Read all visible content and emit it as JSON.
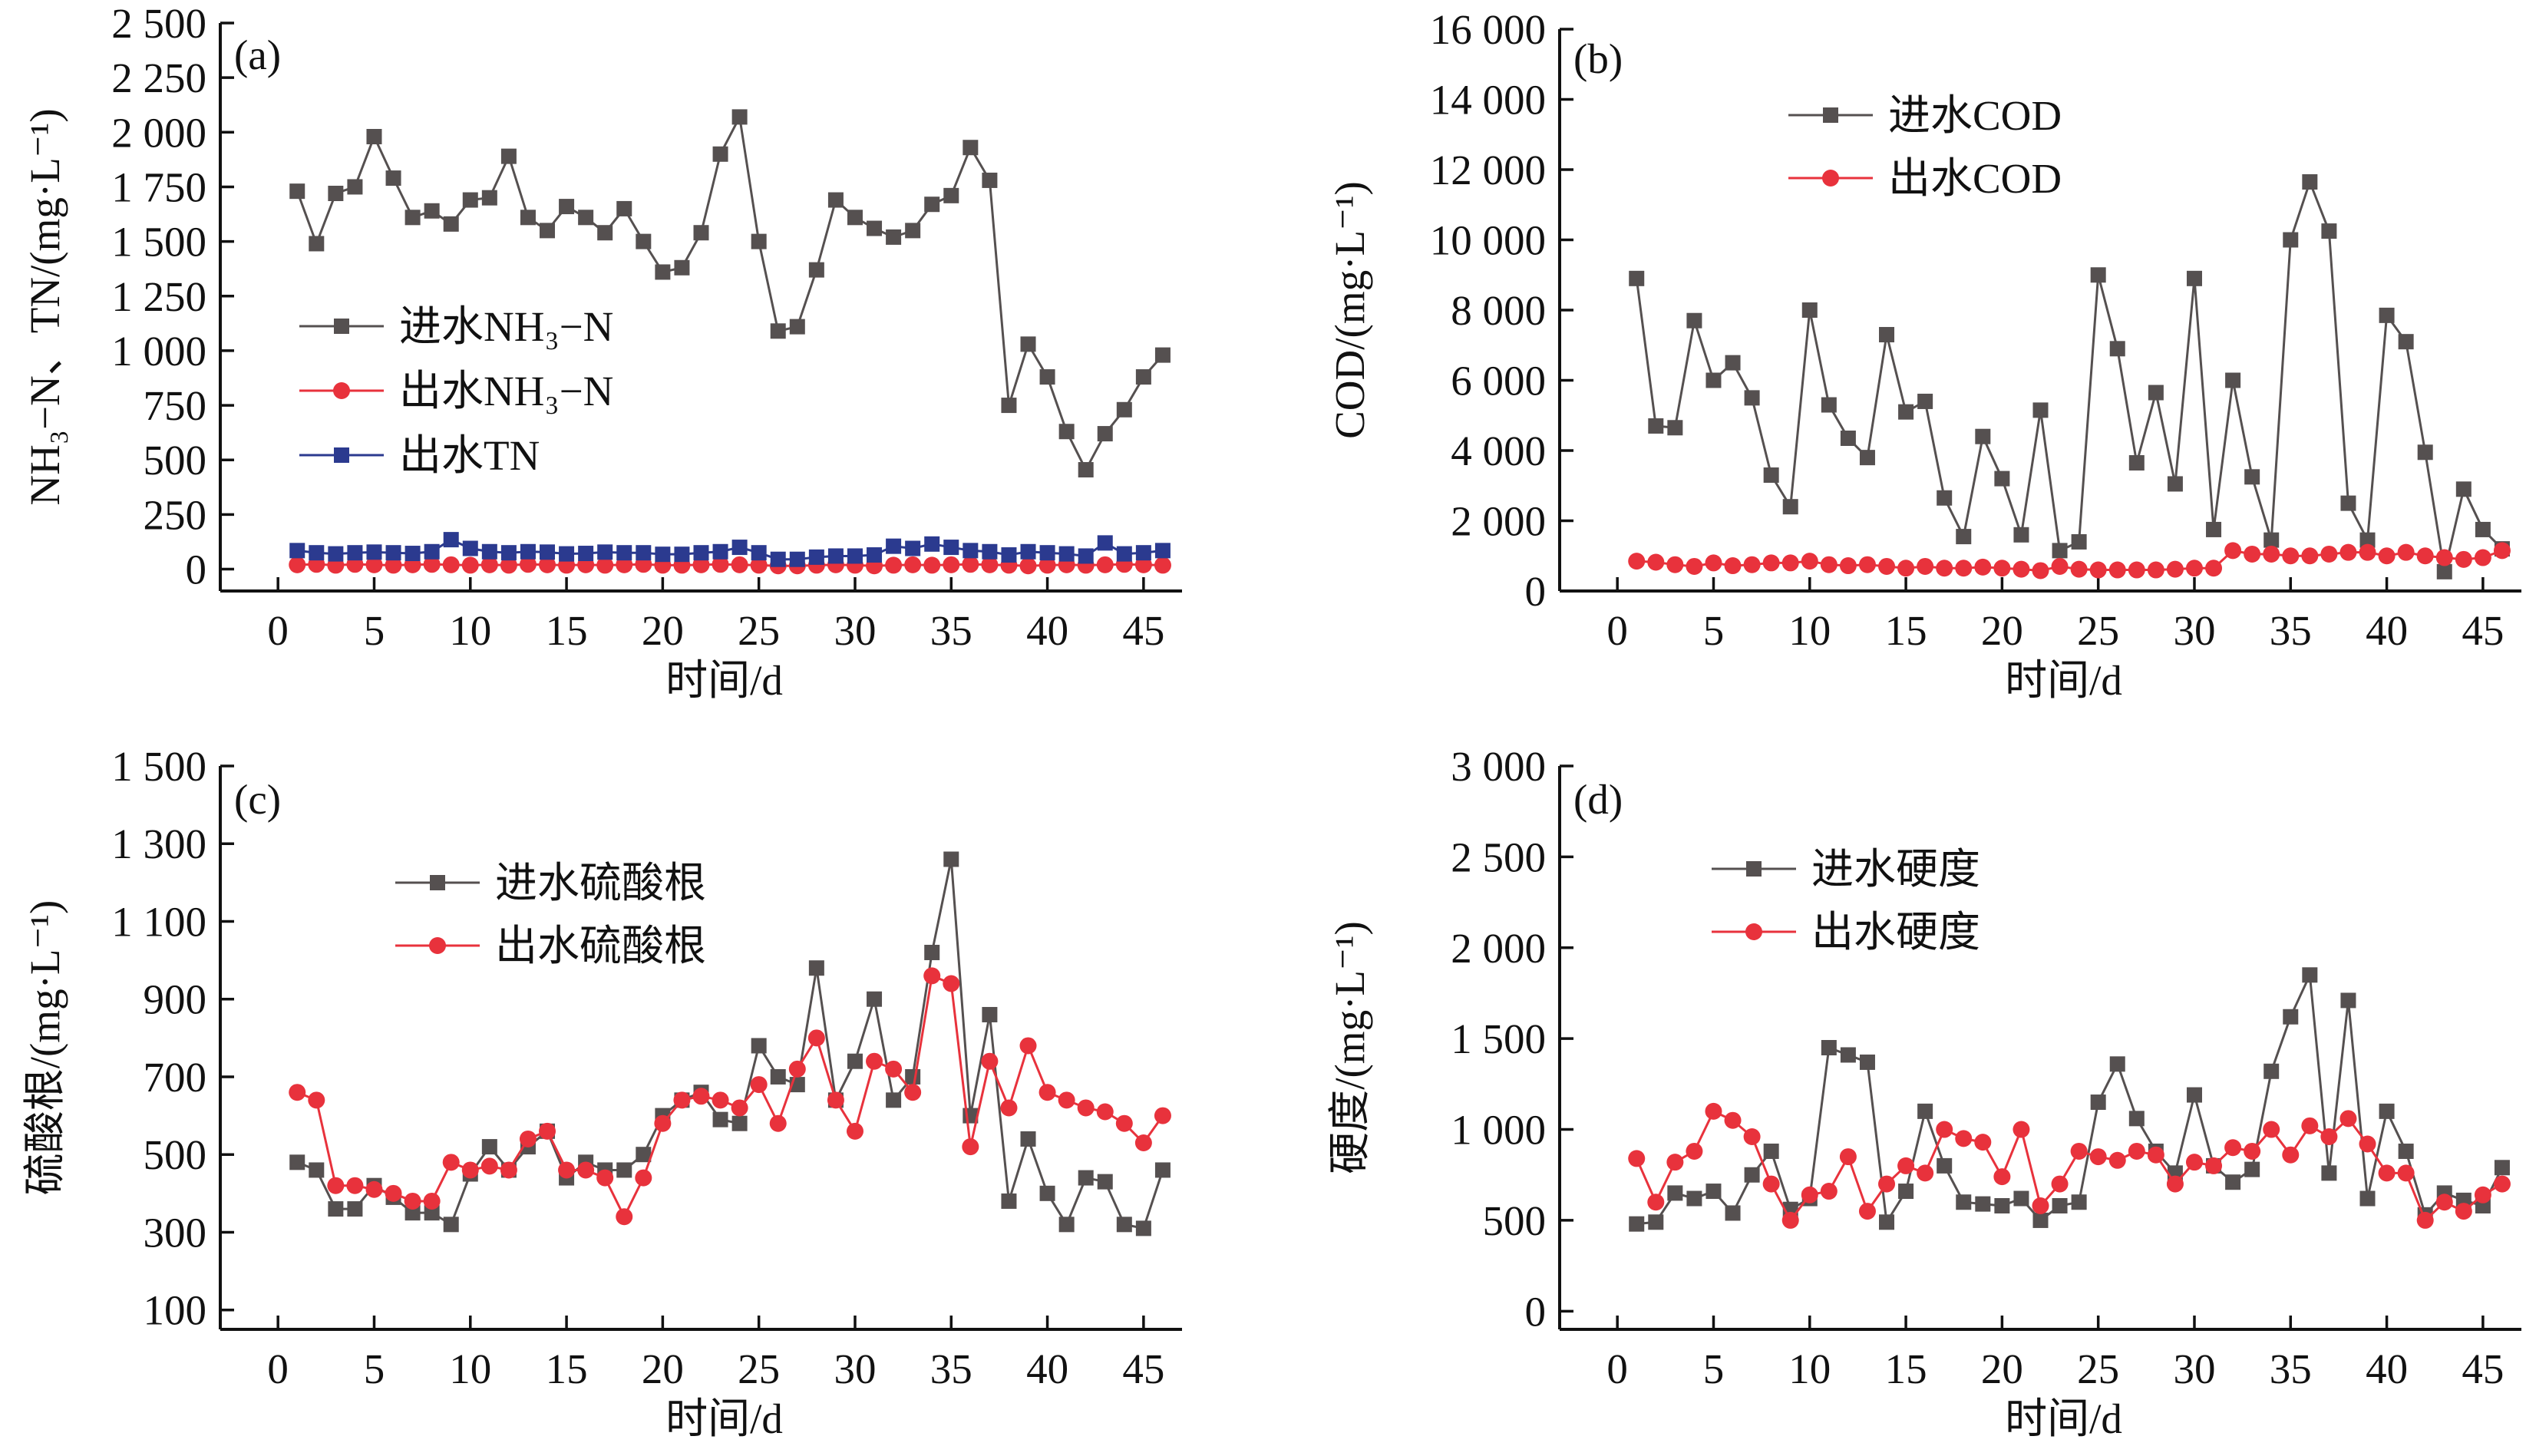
{
  "chart_data": [
    {
      "type": "line",
      "panel_label": "(a)",
      "xlabel": "时间/d",
      "ylabel": "NH₃−N、TN/(mg·L⁻¹)",
      "xlim": [
        -3,
        47
      ],
      "ylim": [
        -100,
        2500
      ],
      "xticks": [
        0,
        5,
        10,
        15,
        20,
        25,
        30,
        35,
        40,
        45
      ],
      "yticks": [
        0,
        250,
        500,
        750,
        1000,
        1250,
        1500,
        1750,
        2000,
        2250,
        2500
      ],
      "ytick_labels": [
        "0",
        "250",
        "500",
        "750",
        "1 000",
        "1 250",
        "1 500",
        "1 750",
        "2 000",
        "2 250",
        "2 500"
      ],
      "legend_position": "center-left",
      "series": [
        {
          "name": "进水NH₃−N",
          "marker": "square",
          "color": "#555050",
          "x": [
            1,
            2,
            3,
            4,
            5,
            6,
            7,
            8,
            9,
            10,
            11,
            12,
            13,
            14,
            15,
            16,
            17,
            18,
            19,
            20,
            21,
            22,
            23,
            24,
            25,
            26,
            27,
            28,
            29,
            30,
            31,
            32,
            33,
            34,
            35,
            36,
            37,
            38,
            39,
            40,
            41,
            42,
            43,
            44,
            45,
            46
          ],
          "values": [
            1730,
            1490,
            1720,
            1750,
            1980,
            1790,
            1610,
            1640,
            1580,
            1690,
            1700,
            1890,
            1610,
            1550,
            1660,
            1610,
            1540,
            1650,
            1500,
            1360,
            1380,
            1540,
            1900,
            2070,
            1500,
            1090,
            1110,
            1370,
            1690,
            1610,
            1560,
            1520,
            1550,
            1670,
            1710,
            1930,
            1780,
            750,
            1030,
            880,
            630,
            455,
            620,
            730,
            880,
            980
          ]
        },
        {
          "name": "出水NH₃−N",
          "marker": "circle",
          "color": "#e8323c",
          "x": [
            1,
            2,
            3,
            4,
            5,
            6,
            7,
            8,
            9,
            10,
            11,
            12,
            13,
            14,
            15,
            16,
            17,
            18,
            19,
            20,
            21,
            22,
            23,
            24,
            25,
            26,
            27,
            28,
            29,
            30,
            31,
            32,
            33,
            34,
            35,
            36,
            37,
            38,
            39,
            40,
            41,
            42,
            43,
            44,
            45,
            46
          ],
          "values": [
            20,
            22,
            18,
            22,
            20,
            18,
            20,
            22,
            20,
            18,
            20,
            18,
            22,
            20,
            18,
            20,
            18,
            20,
            22,
            18,
            18,
            20,
            22,
            20,
            18,
            15,
            15,
            18,
            20,
            18,
            15,
            18,
            20,
            18,
            20,
            22,
            20,
            18,
            15,
            18,
            20,
            18,
            20,
            22,
            20,
            18
          ]
        },
        {
          "name": "出水TN",
          "marker": "square",
          "color": "#2b3a8f",
          "x": [
            1,
            2,
            3,
            4,
            5,
            6,
            7,
            8,
            9,
            10,
            11,
            12,
            13,
            14,
            15,
            16,
            17,
            18,
            19,
            20,
            21,
            22,
            23,
            24,
            25,
            26,
            27,
            28,
            29,
            30,
            31,
            32,
            33,
            34,
            35,
            36,
            37,
            38,
            39,
            40,
            41,
            42,
            43,
            44,
            45,
            46
          ],
          "values": [
            85,
            75,
            70,
            75,
            78,
            75,
            72,
            80,
            135,
            95,
            80,
            75,
            80,
            78,
            70,
            72,
            78,
            75,
            75,
            68,
            68,
            75,
            80,
            100,
            75,
            45,
            45,
            55,
            60,
            60,
            65,
            105,
            95,
            115,
            100,
            85,
            80,
            65,
            80,
            75,
            70,
            60,
            120,
            70,
            75,
            85
          ]
        }
      ]
    },
    {
      "type": "line",
      "panel_label": "(b)",
      "xlabel": "时间/d",
      "ylabel": "COD/(mg·L⁻¹)",
      "xlim": [
        -3,
        47
      ],
      "ylim": [
        0,
        16000
      ],
      "xticks": [
        0,
        5,
        10,
        15,
        20,
        25,
        30,
        35,
        40,
        45
      ],
      "yticks": [
        0,
        2000,
        4000,
        6000,
        8000,
        10000,
        12000,
        14000,
        16000
      ],
      "ytick_labels": [
        "0",
        "2 000",
        "4 000",
        "6 000",
        "8 000",
        "10 000",
        "12 000",
        "14 000",
        "16 000"
      ],
      "legend_position": "top-center",
      "series": [
        {
          "name": "进水COD",
          "marker": "square",
          "color": "#555050",
          "x": [
            1,
            2,
            3,
            4,
            5,
            6,
            7,
            8,
            9,
            10,
            11,
            12,
            13,
            14,
            15,
            16,
            17,
            18,
            19,
            20,
            21,
            22,
            23,
            24,
            25,
            26,
            27,
            28,
            29,
            30,
            31,
            32,
            33,
            34,
            35,
            36,
            37,
            38,
            39,
            40,
            41,
            42,
            43,
            44,
            45,
            46
          ],
          "values": [
            8900,
            4700,
            4650,
            7700,
            6000,
            6500,
            5500,
            3300,
            2400,
            8000,
            5300,
            4350,
            3800,
            7300,
            5100,
            5400,
            2650,
            1550,
            4400,
            3200,
            1600,
            5150,
            1150,
            1400,
            9000,
            6900,
            3650,
            5650,
            3050,
            8900,
            1750,
            6000,
            3250,
            1450,
            10000,
            11650,
            10250,
            2500,
            1450,
            7850,
            7100,
            3950,
            550,
            2900,
            1750,
            1200
          ]
        },
        {
          "name": "出水COD",
          "marker": "circle",
          "color": "#e8323c",
          "x": [
            1,
            2,
            3,
            4,
            5,
            6,
            7,
            8,
            9,
            10,
            11,
            12,
            13,
            14,
            15,
            16,
            17,
            18,
            19,
            20,
            21,
            22,
            23,
            24,
            25,
            26,
            27,
            28,
            29,
            30,
            31,
            32,
            33,
            34,
            35,
            36,
            37,
            38,
            39,
            40,
            41,
            42,
            43,
            44,
            45,
            46
          ],
          "values": [
            850,
            820,
            750,
            700,
            800,
            720,
            750,
            800,
            800,
            850,
            750,
            720,
            750,
            700,
            650,
            700,
            650,
            650,
            680,
            650,
            620,
            580,
            700,
            620,
            600,
            600,
            600,
            600,
            620,
            650,
            650,
            1150,
            1050,
            1050,
            1000,
            1000,
            1050,
            1100,
            1100,
            1000,
            1100,
            1000,
            950,
            900,
            950,
            1150
          ]
        }
      ]
    },
    {
      "type": "line",
      "panel_label": "(c)",
      "xlabel": "时间/d",
      "ylabel": "硫酸根/(mg·L⁻¹)",
      "xlim": [
        -3,
        47
      ],
      "ylim": [
        50,
        1500
      ],
      "xticks": [
        0,
        5,
        10,
        15,
        20,
        25,
        30,
        35,
        40,
        45
      ],
      "yticks": [
        100,
        300,
        500,
        700,
        900,
        1100,
        1300,
        1500
      ],
      "ytick_labels": [
        "100",
        "300",
        "500",
        "700",
        "900",
        "1 100",
        "1 300",
        "1 500"
      ],
      "legend_position": "top-left",
      "series": [
        {
          "name": "进水硫酸根",
          "marker": "square",
          "color": "#555050",
          "x": [
            1,
            2,
            3,
            4,
            5,
            6,
            7,
            8,
            9,
            10,
            11,
            12,
            13,
            14,
            15,
            16,
            17,
            18,
            19,
            20,
            21,
            22,
            23,
            24,
            25,
            26,
            27,
            28,
            29,
            30,
            31,
            32,
            33,
            34,
            35,
            36,
            37,
            38,
            39,
            40,
            41,
            42,
            43,
            44,
            45,
            46
          ],
          "values": [
            480,
            460,
            360,
            360,
            420,
            390,
            350,
            350,
            320,
            450,
            520,
            460,
            520,
            560,
            440,
            480,
            460,
            460,
            500,
            600,
            640,
            660,
            590,
            580,
            780,
            700,
            680,
            980,
            640,
            740,
            900,
            640,
            700,
            1020,
            1260,
            600,
            860,
            380,
            540,
            400,
            320,
            440,
            430,
            320,
            310,
            460
          ]
        },
        {
          "name": "出水硫酸根",
          "marker": "circle",
          "color": "#e8323c",
          "x": [
            1,
            2,
            3,
            4,
            5,
            6,
            7,
            8,
            9,
            10,
            11,
            12,
            13,
            14,
            15,
            16,
            17,
            18,
            19,
            20,
            21,
            22,
            23,
            24,
            25,
            26,
            27,
            28,
            29,
            30,
            31,
            32,
            33,
            34,
            35,
            36,
            37,
            38,
            39,
            40,
            41,
            42,
            43,
            44,
            45,
            46
          ],
          "values": [
            660,
            640,
            420,
            420,
            410,
            400,
            380,
            380,
            480,
            460,
            470,
            460,
            540,
            560,
            460,
            460,
            440,
            340,
            440,
            580,
            640,
            650,
            640,
            620,
            680,
            580,
            720,
            800,
            640,
            560,
            740,
            720,
            660,
            960,
            940,
            520,
            740,
            620,
            780,
            660,
            640,
            620,
            610,
            580,
            530,
            600
          ]
        }
      ]
    },
    {
      "type": "line",
      "panel_label": "(d)",
      "xlabel": "时间/d",
      "ylabel": "硬度/(mg·L⁻¹)",
      "xlim": [
        -3,
        47
      ],
      "ylim": [
        -100,
        3000
      ],
      "xticks": [
        0,
        5,
        10,
        15,
        20,
        25,
        30,
        35,
        40,
        45
      ],
      "yticks": [
        0,
        500,
        1000,
        1500,
        2000,
        2500,
        3000
      ],
      "ytick_labels": [
        "0",
        "500",
        "1 000",
        "1 500",
        "2 000",
        "2 500",
        "3 000"
      ],
      "legend_position": "top-left",
      "series": [
        {
          "name": "进水硬度",
          "marker": "square",
          "color": "#555050",
          "x": [
            1,
            2,
            3,
            4,
            5,
            6,
            7,
            8,
            9,
            10,
            11,
            12,
            13,
            14,
            15,
            16,
            17,
            18,
            19,
            20,
            21,
            22,
            23,
            24,
            25,
            26,
            27,
            28,
            29,
            30,
            31,
            32,
            33,
            34,
            35,
            36,
            37,
            38,
            39,
            40,
            41,
            42,
            43,
            44,
            45,
            46
          ],
          "values": [
            480,
            490,
            650,
            620,
            660,
            540,
            750,
            880,
            560,
            620,
            1450,
            1410,
            1370,
            490,
            660,
            1100,
            800,
            600,
            590,
            580,
            620,
            500,
            580,
            600,
            1150,
            1360,
            1060,
            880,
            760,
            1190,
            800,
            710,
            780,
            1320,
            1620,
            1850,
            760,
            1710,
            620,
            1100,
            880,
            530,
            650,
            610,
            580,
            790
          ]
        },
        {
          "name": "出水硬度",
          "marker": "circle",
          "color": "#e8323c",
          "x": [
            1,
            2,
            3,
            4,
            5,
            6,
            7,
            8,
            9,
            10,
            11,
            12,
            13,
            14,
            15,
            16,
            17,
            18,
            19,
            20,
            21,
            22,
            23,
            24,
            25,
            26,
            27,
            28,
            29,
            30,
            31,
            32,
            33,
            34,
            35,
            36,
            37,
            38,
            39,
            40,
            41,
            42,
            43,
            44,
            45,
            46
          ],
          "values": [
            840,
            600,
            820,
            880,
            1100,
            1050,
            960,
            700,
            500,
            640,
            660,
            850,
            550,
            700,
            800,
            760,
            1000,
            950,
            930,
            740,
            1000,
            580,
            700,
            880,
            850,
            830,
            880,
            860,
            700,
            820,
            800,
            900,
            880,
            1000,
            860,
            1020,
            960,
            1060,
            920,
            760,
            760,
            500,
            600,
            550,
            640,
            700
          ]
        }
      ]
    }
  ]
}
